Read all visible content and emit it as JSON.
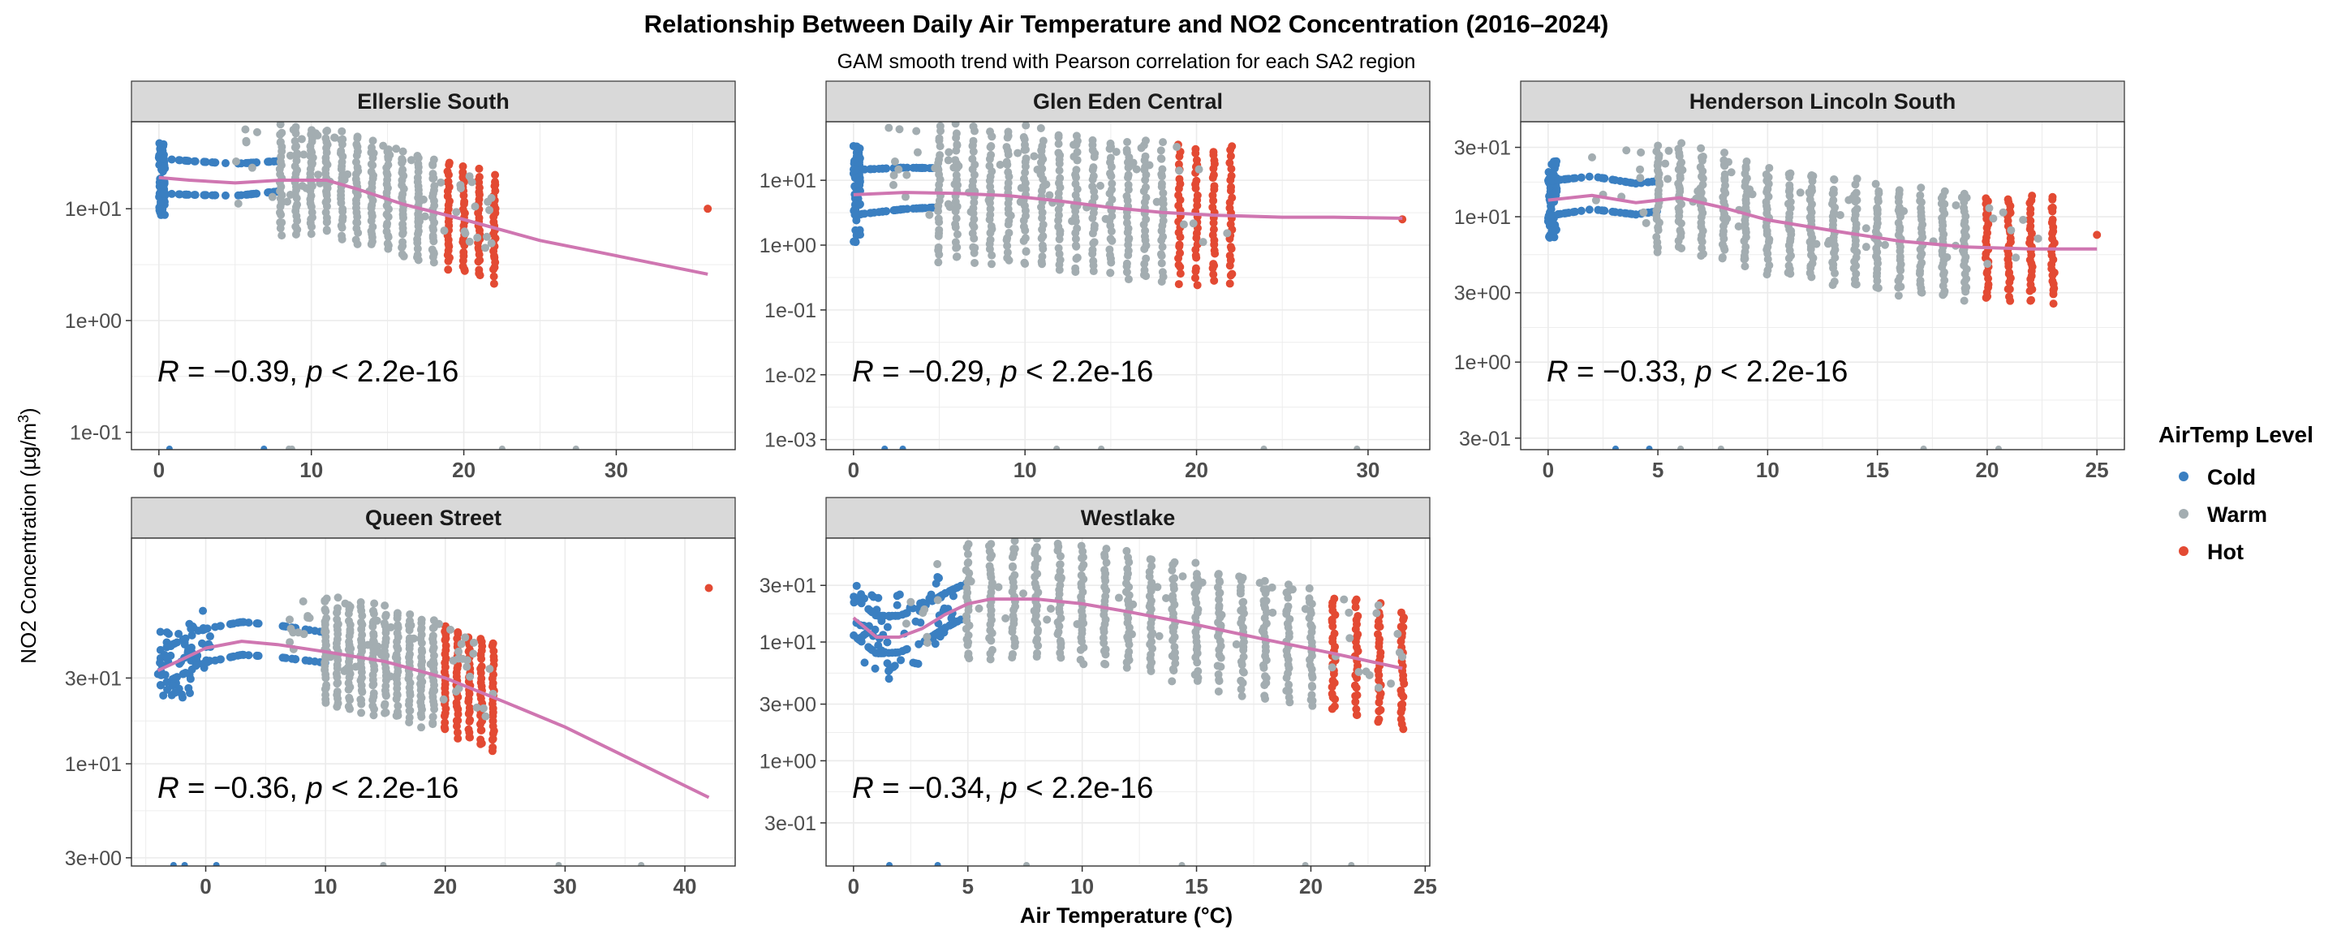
{
  "title": "Relationship Between Daily Air Temperature and  NO2  Concentration (2016–2024)",
  "subtitle": "GAM smooth trend with Pearson correlation for each SA2 region",
  "xlabel": "Air Temperature (°C)",
  "ylabel_main": "NO2 Concentration (µg/m",
  "ylabel_sup": "3",
  "ylabel_close": ")",
  "legend": {
    "title": "AirTemp Level",
    "items": [
      {
        "label": "Cold",
        "color": "#3a7fc1"
      },
      {
        "label": "Warm",
        "color": "#a3adb1"
      },
      {
        "label": "Hot",
        "color": "#e34a33"
      }
    ]
  },
  "colors": {
    "cold": "#3a7fc1",
    "warm": "#a3adb1",
    "hot": "#e34a33",
    "smooth": "#cf76b1",
    "strip": "#d9d9d9",
    "grid": "#ebebeb"
  },
  "chart_data": [
    {
      "type": "scatter",
      "panel": "Ellerslie South",
      "yscale": "log",
      "xlim": [
        -1.8,
        37.8
      ],
      "ylim": [
        0.07,
        60
      ],
      "xticks": [
        0,
        10,
        20,
        30
      ],
      "yticks": [
        0.1,
        1,
        10
      ],
      "yticklabels": [
        "1e-01",
        "1e+00",
        "1e+01"
      ],
      "annotation": {
        "R": "−0.39",
        "p": "2.2e-16"
      },
      "columns_x": [
        8,
        22
      ],
      "spread": 0.72,
      "smooth": [
        [
          0,
          19
        ],
        [
          2,
          18
        ],
        [
          5,
          17
        ],
        [
          8,
          18
        ],
        [
          11,
          18
        ],
        [
          13,
          15
        ],
        [
          16,
          11
        ],
        [
          20,
          8
        ],
        [
          25,
          5.2
        ],
        [
          30,
          3.8
        ],
        [
          36,
          2.6
        ]
      ],
      "outliers": [
        [
          36,
          10
        ]
      ]
    },
    {
      "type": "scatter",
      "panel": "Glen Eden Central",
      "yscale": "log",
      "xlim": [
        -1.6,
        33.6
      ],
      "ylim": [
        0.0007,
        80
      ],
      "xticks": [
        0,
        10,
        20,
        30
      ],
      "yticks": [
        0.001,
        0.01,
        0.1,
        1,
        10
      ],
      "yticklabels": [
        "1e-03",
        "1e-02",
        "1e-01",
        "1e+00",
        "1e+01"
      ],
      "annotation": {
        "R": "−0.29",
        "p": "2.2e-16"
      },
      "columns_x": [
        5,
        22
      ],
      "spread": 1.6,
      "smooth": [
        [
          0,
          6
        ],
        [
          3,
          6.5
        ],
        [
          6,
          6.3
        ],
        [
          9,
          5.8
        ],
        [
          12,
          4.8
        ],
        [
          15,
          3.8
        ],
        [
          18,
          3.2
        ],
        [
          21,
          2.9
        ],
        [
          25,
          2.7
        ],
        [
          28,
          2.7
        ],
        [
          32,
          2.6
        ]
      ],
      "outliers": [
        [
          32,
          2.5
        ]
      ]
    },
    {
      "type": "scatter",
      "panel": "Henderson Lincoln South",
      "yscale": "log",
      "xlim": [
        -1.25,
        26.25
      ],
      "ylim": [
        0.25,
        45
      ],
      "xticks": [
        0,
        5,
        10,
        15,
        20,
        25
      ],
      "yticks": [
        0.3,
        1,
        3,
        10,
        30
      ],
      "yticklabels": [
        "3e-01",
        "1e+00",
        "3e+00",
        "1e+01",
        "3e+01"
      ],
      "annotation": {
        "R": "−0.33",
        "p": "2.2e-16"
      },
      "columns_x": [
        5,
        23
      ],
      "spread": 0.55,
      "smooth": [
        [
          0,
          13
        ],
        [
          2,
          14
        ],
        [
          4,
          12.5
        ],
        [
          6,
          13.5
        ],
        [
          8,
          11.5
        ],
        [
          10,
          9.5
        ],
        [
          13,
          8
        ],
        [
          16,
          6.8
        ],
        [
          19,
          6.2
        ],
        [
          22,
          6
        ],
        [
          25,
          6
        ]
      ],
      "outliers": [
        [
          25,
          7.5
        ]
      ]
    },
    {
      "type": "scatter",
      "panel": "Queen Street",
      "yscale": "log",
      "xlim": [
        -6.2,
        44.2
      ],
      "ylim": [
        2.7,
        180
      ],
      "xticks": [
        0,
        10,
        20,
        30,
        40
      ],
      "yticks": [
        3,
        10,
        30
      ],
      "yticklabels": [
        "3e+00",
        "1e+01",
        "3e+01"
      ],
      "annotation": {
        "R": "−0.36",
        "p": "2.2e-16"
      },
      "columns_x": [
        10,
        24
      ],
      "spread": 0.45,
      "smooth": [
        [
          -4,
          33
        ],
        [
          -2,
          38
        ],
        [
          0,
          44
        ],
        [
          3,
          48
        ],
        [
          6,
          46
        ],
        [
          10,
          42
        ],
        [
          15,
          37
        ],
        [
          20,
          30
        ],
        [
          25,
          22
        ],
        [
          30,
          16
        ],
        [
          35,
          11
        ],
        [
          42,
          6.5
        ]
      ],
      "outliers": [
        [
          42,
          95
        ]
      ]
    },
    {
      "type": "scatter",
      "panel": "Westlake",
      "yscale": "log",
      "xlim": [
        -1.2,
        25.2
      ],
      "ylim": [
        0.13,
        75
      ],
      "xticks": [
        0,
        5,
        10,
        15,
        20,
        25
      ],
      "yticks": [
        0.3,
        1,
        3,
        10,
        30
      ],
      "yticklabels": [
        "3e-01",
        "1e+00",
        "3e+00",
        "1e+01",
        "3e+01"
      ],
      "annotation": {
        "R": "−0.34",
        "p": "2.2e-16"
      },
      "columns_x": [
        5,
        24
      ],
      "spread": 0.75,
      "smooth": [
        [
          0,
          16
        ],
        [
          1,
          11
        ],
        [
          2,
          11
        ],
        [
          3,
          13
        ],
        [
          4,
          17
        ],
        [
          5,
          21
        ],
        [
          6,
          23
        ],
        [
          8,
          23
        ],
        [
          10,
          21
        ],
        [
          12,
          18
        ],
        [
          15,
          14
        ],
        [
          18,
          10.5
        ],
        [
          21,
          8
        ],
        [
          24,
          6
        ]
      ],
      "outliers": [
        [
          24,
          3
        ]
      ]
    }
  ]
}
